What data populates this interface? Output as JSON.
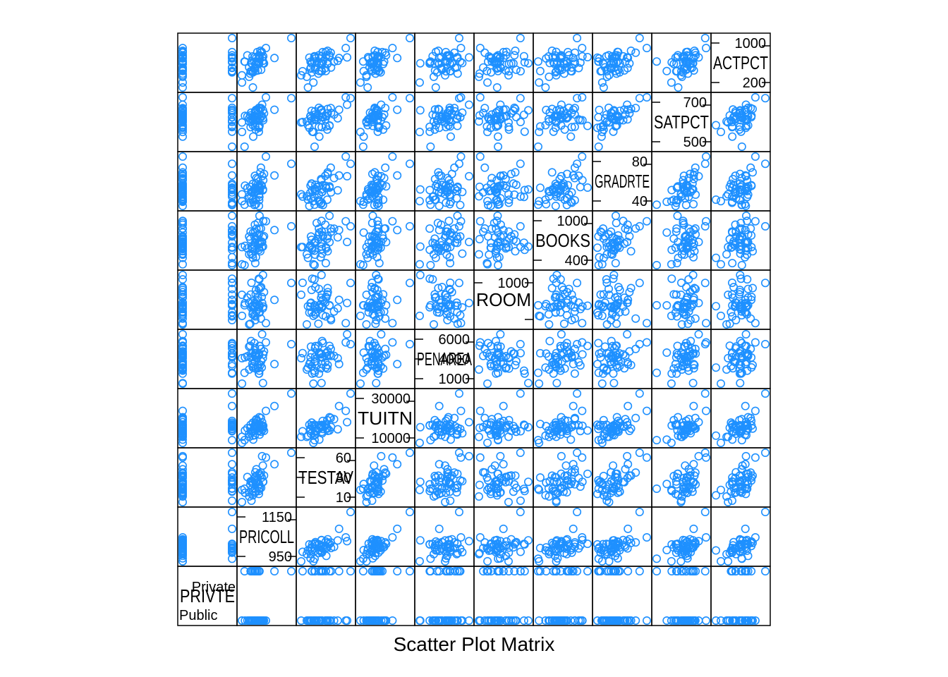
{
  "chart_data": {
    "type": "scatter",
    "title": "Scatter Plot Matrix",
    "grid": false,
    "point_color": "#1e90ff",
    "variables": [
      {
        "name": "PRIVTE",
        "kind": "factor",
        "levels": [
          "Public",
          "Private"
        ],
        "ticks": []
      },
      {
        "name": "PRICOLL",
        "kind": "numeric",
        "ticks": [
          "1150",
          "950"
        ]
      },
      {
        "name": "TESTAV",
        "kind": "numeric",
        "ticks": [
          "60",
          "30",
          "10"
        ]
      },
      {
        "name": "TUITN",
        "kind": "numeric",
        "ticks": [
          "30000",
          "10000"
        ]
      },
      {
        "name": "PENAREA",
        "kind": "numeric",
        "ticks": [
          "6000",
          "4000",
          "1000"
        ]
      },
      {
        "name": "ROOM",
        "kind": "numeric",
        "ticks": [
          "1000"
        ]
      },
      {
        "name": "BOOKS",
        "kind": "numeric",
        "ticks": [
          "1000",
          "400"
        ]
      },
      {
        "name": "GRADRTE",
        "kind": "numeric",
        "ticks": [
          "80",
          "40"
        ]
      },
      {
        "name": "SATPCT",
        "kind": "numeric",
        "ticks": [
          "700",
          "500"
        ]
      },
      {
        "name": "ACTPCT",
        "kind": "numeric",
        "ticks": [
          "1000",
          "200"
        ]
      }
    ],
    "n_observations": 50
  }
}
